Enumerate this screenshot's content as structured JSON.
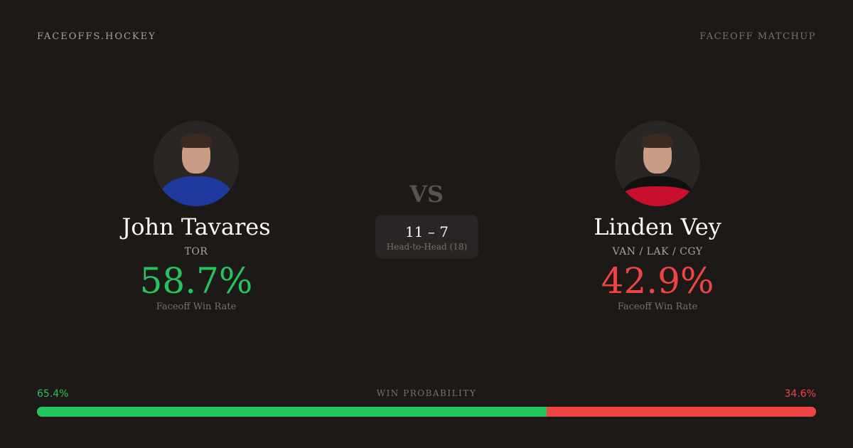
{
  "brand": "FACEOFFS.HOCKEY",
  "tag": "FACEOFF MATCHUP",
  "vs": "VS",
  "head_to_head": {
    "score": "11 – 7",
    "label": "Head-to-Head (18)"
  },
  "players": [
    {
      "name": "John Tavares",
      "team": "TOR",
      "rate": "58.7%",
      "rate_label": "Faceoff Win Rate",
      "color": "#22c55e",
      "jersey": "#1e3a9e"
    },
    {
      "name": "Linden Vey",
      "team": "VAN / LAK / CGY",
      "rate": "42.9%",
      "rate_label": "Faceoff Win Rate",
      "color": "#ef4444",
      "jersey": "#c8102e"
    }
  ],
  "win_probability": {
    "label": "WIN PROBABILITY",
    "left": "65.4%",
    "right": "34.6%",
    "left_value": 65.4,
    "right_value": 34.6,
    "left_color": "#22c55e",
    "right_color": "#ef4444"
  }
}
